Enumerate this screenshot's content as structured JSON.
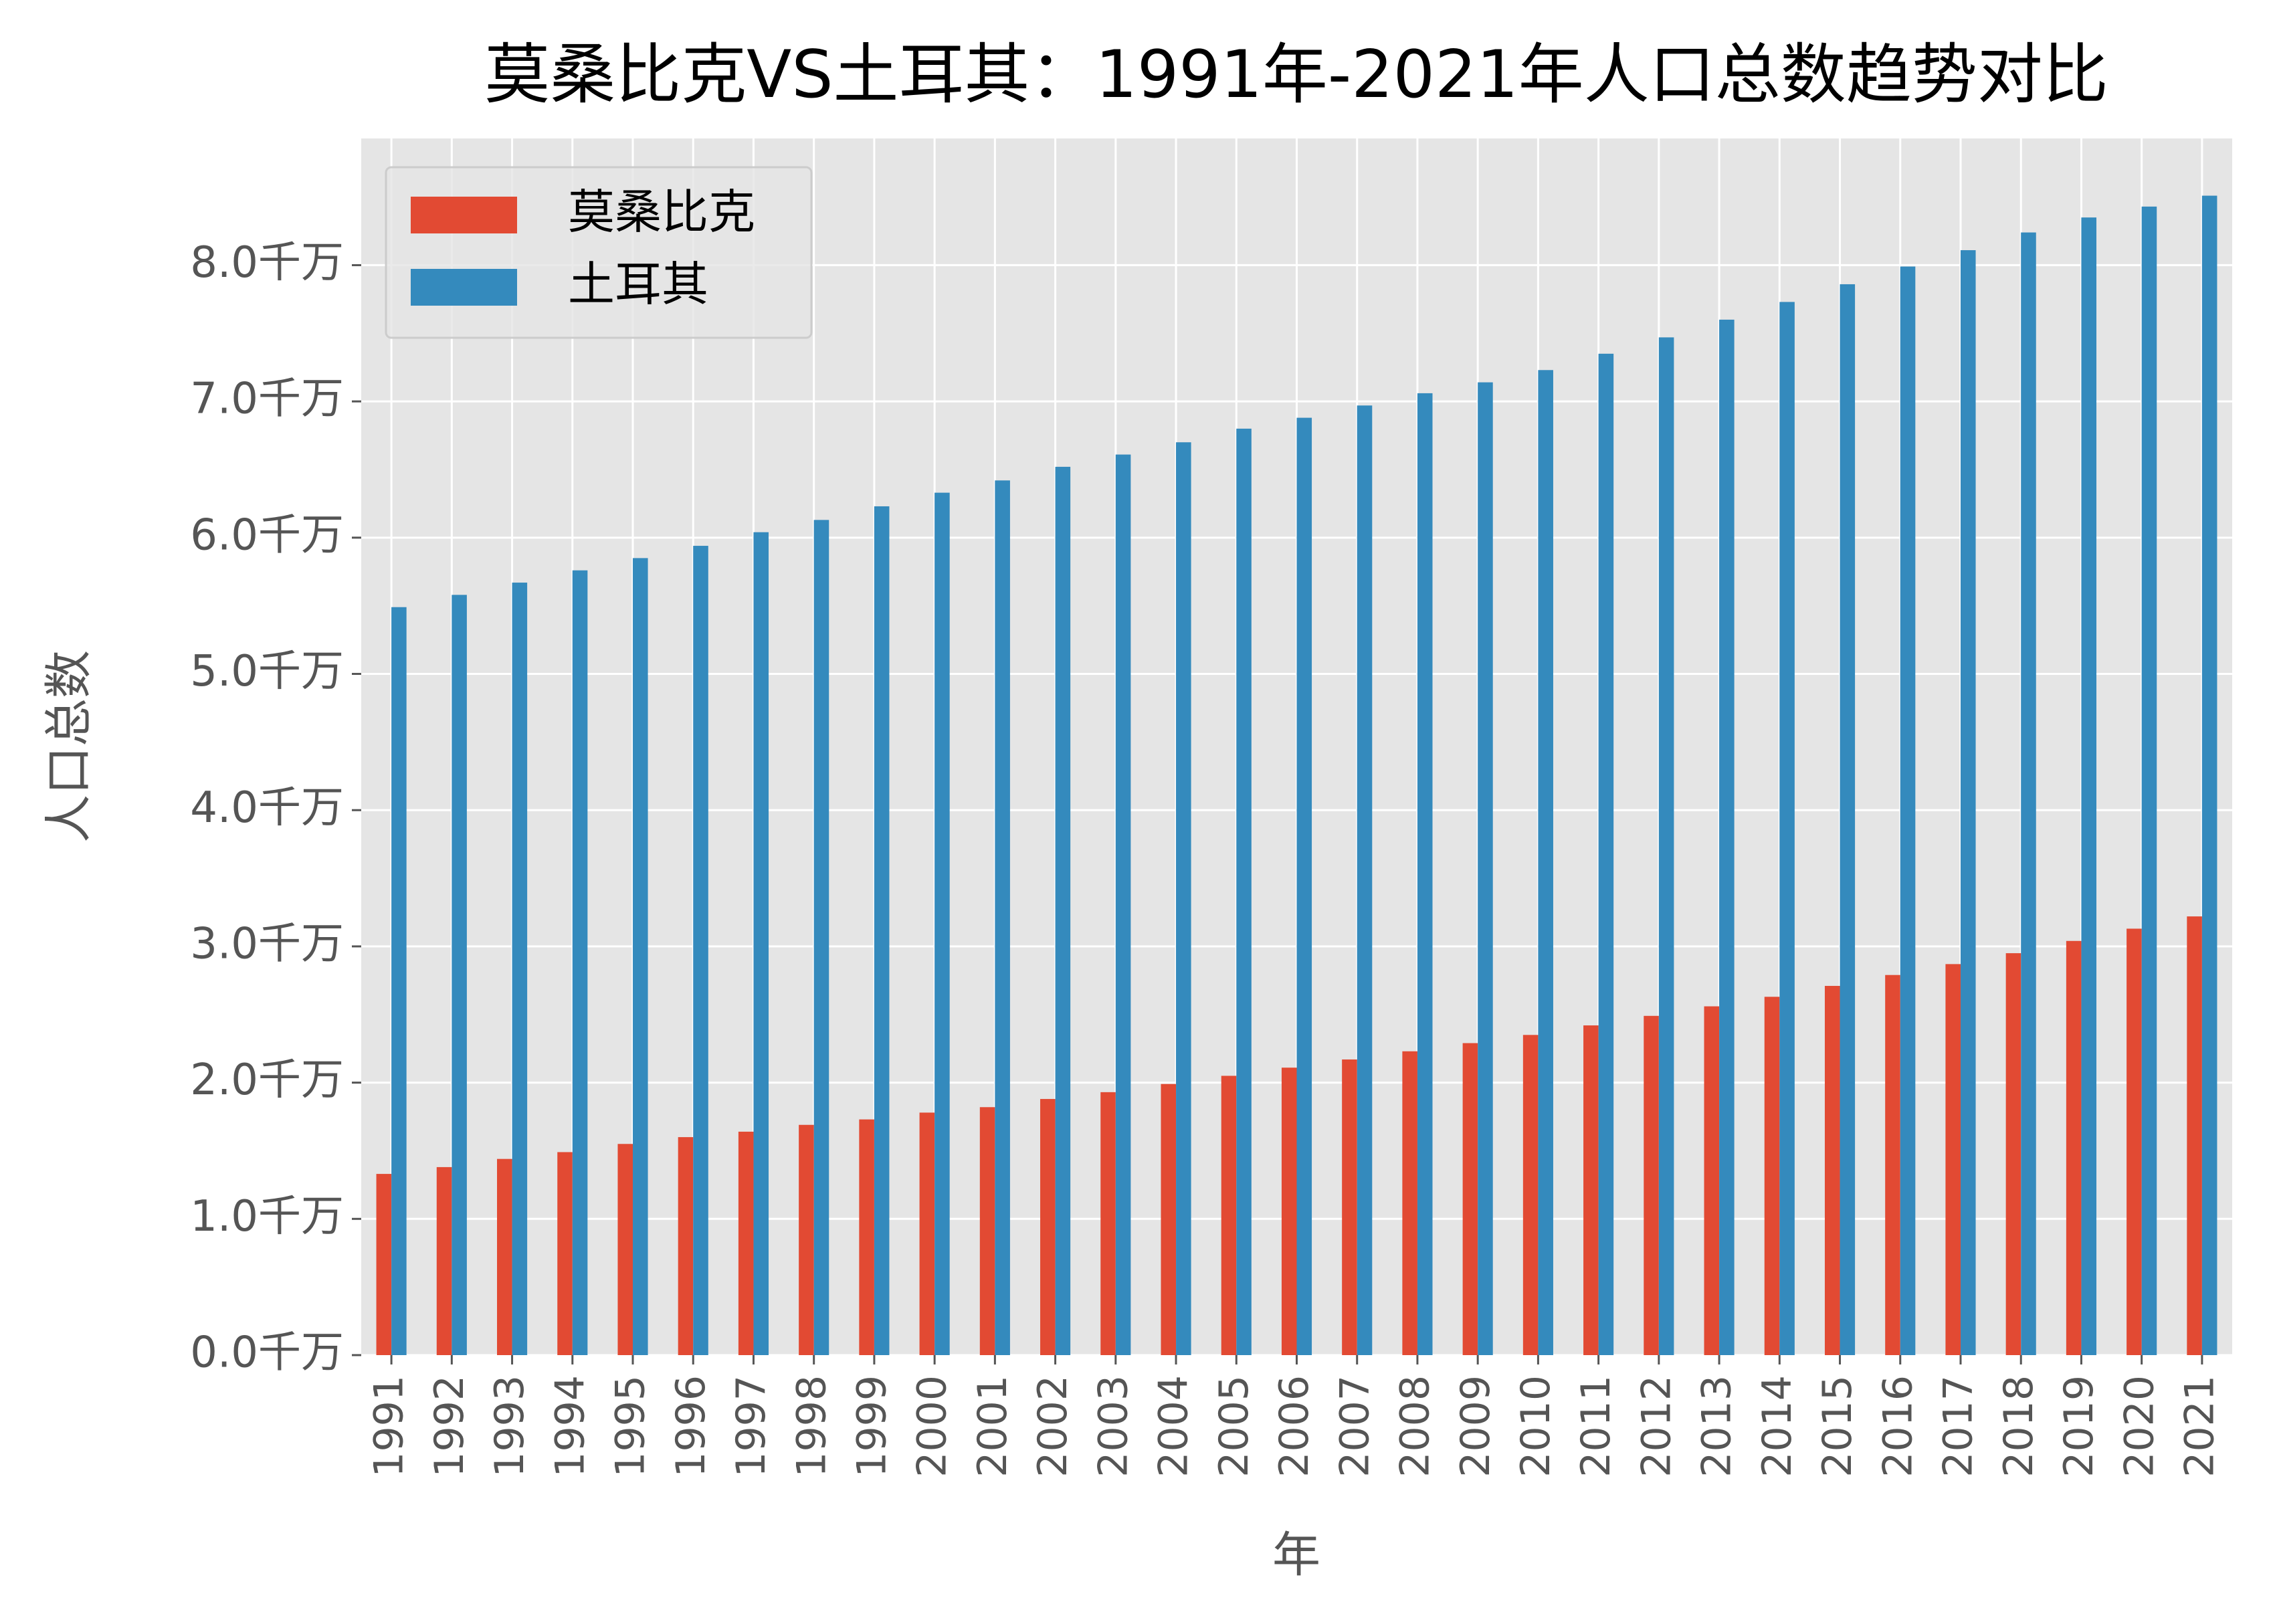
{
  "chart_data": {
    "type": "bar",
    "title": "莫桑比克VS土耳其：1991年-2021年人口总数趋势对比",
    "x_label": "年",
    "y_label": "人口总数",
    "categories": [
      "1991",
      "1992",
      "1993",
      "1994",
      "1995",
      "1996",
      "1997",
      "1998",
      "1999",
      "2000",
      "2001",
      "2002",
      "2003",
      "2004",
      "2005",
      "2006",
      "2007",
      "2008",
      "2009",
      "2010",
      "2011",
      "2012",
      "2013",
      "2014",
      "2015",
      "2016",
      "2017",
      "2018",
      "2019",
      "2020",
      "2021"
    ],
    "series": [
      {
        "name": "莫桑比克",
        "color": "#e24a33",
        "values": [
          1.33,
          1.38,
          1.44,
          1.49,
          1.55,
          1.6,
          1.64,
          1.69,
          1.73,
          1.78,
          1.82,
          1.88,
          1.93,
          1.99,
          2.05,
          2.11,
          2.17,
          2.23,
          2.29,
          2.35,
          2.42,
          2.49,
          2.56,
          2.63,
          2.71,
          2.79,
          2.87,
          2.95,
          3.04,
          3.13,
          3.22
        ]
      },
      {
        "name": "土耳其",
        "color": "#348abd",
        "values": [
          5.49,
          5.58,
          5.67,
          5.76,
          5.85,
          5.94,
          6.04,
          6.13,
          6.23,
          6.33,
          6.42,
          6.52,
          6.61,
          6.7,
          6.8,
          6.88,
          6.97,
          7.06,
          7.14,
          7.23,
          7.35,
          7.47,
          7.6,
          7.73,
          7.86,
          7.99,
          8.11,
          8.24,
          8.35,
          8.43,
          8.51
        ]
      }
    ],
    "ylim": [
      0,
      8.93
    ],
    "yticks": [
      {
        "value": 0,
        "label": "0.0千万"
      },
      {
        "value": 1,
        "label": "1.0千万"
      },
      {
        "value": 2,
        "label": "2.0千万"
      },
      {
        "value": 3,
        "label": "3.0千万"
      },
      {
        "value": 4,
        "label": "4.0千万"
      },
      {
        "value": 5,
        "label": "5.0千万"
      },
      {
        "value": 6,
        "label": "6.0千万"
      },
      {
        "value": 7,
        "label": "7.0千万"
      },
      {
        "value": 8,
        "label": "8.0千万"
      }
    ],
    "grid": true,
    "legend": "upper left"
  }
}
